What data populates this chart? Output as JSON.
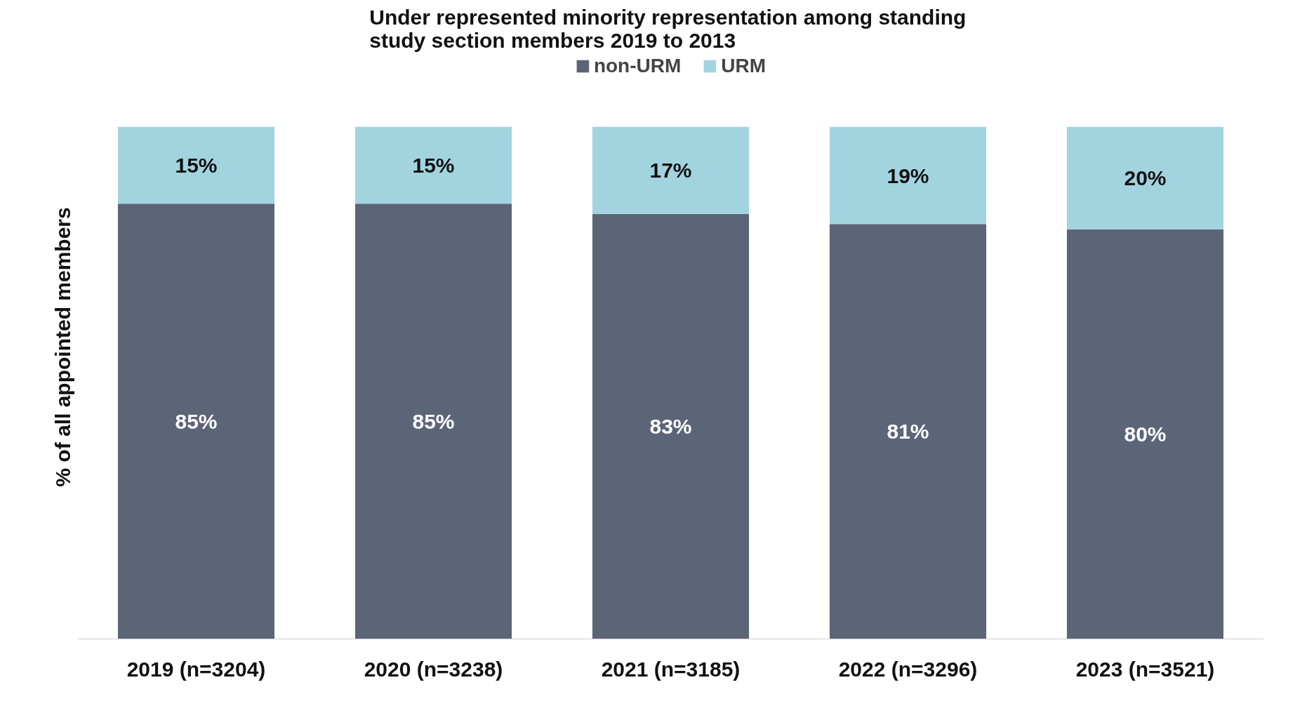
{
  "chart_data": {
    "type": "bar",
    "title": "Under represented minority representation  among standing study section members 2019 to 2013",
    "ylabel": "% of all appointed members",
    "categories": [
      "2019 (n=3204)",
      "2020 (n=3238)",
      "2021 (n=3185)",
      "2022 (n=3296)",
      "2023 (n=3521)"
    ],
    "stacked": true,
    "relative": false,
    "legend": "top",
    "grid": false,
    "series": [
      {
        "name": "non-URM",
        "color": "#5c6478",
        "values": [
          85,
          85,
          83,
          81,
          80
        ],
        "value_labels": [
          "85%",
          "85%",
          "83%",
          "81%",
          "80%"
        ]
      },
      {
        "name": "URM",
        "color": "#a2d4e0",
        "values": [
          15,
          15,
          17,
          19,
          20
        ],
        "value_labels": [
          "15%",
          "15%",
          "17%",
          "19%",
          "20%"
        ]
      }
    ]
  }
}
